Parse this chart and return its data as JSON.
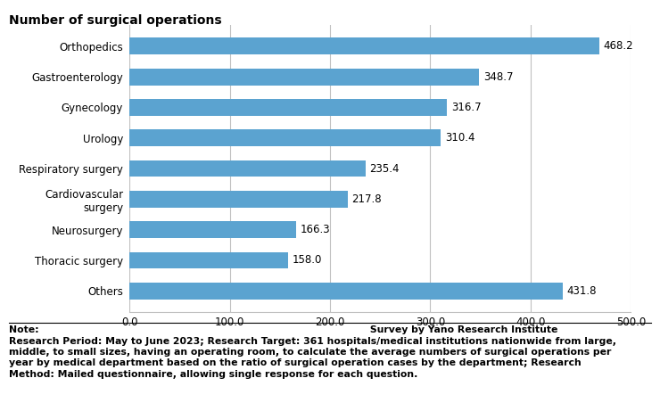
{
  "title": "Number of surgical operations",
  "categories": [
    "Orthopedics",
    "Gastroenterology",
    "Gynecology",
    "Urology",
    "Respiratory surgery",
    "Cardiovascular\nsurgery",
    "Neurosurgery",
    "Thoracic surgery",
    "Others"
  ],
  "values": [
    468.2,
    348.7,
    316.7,
    310.4,
    235.4,
    217.8,
    166.3,
    158.0,
    431.8
  ],
  "bar_color": "#5ba3d0",
  "xlim": [
    0,
    500
  ],
  "xticks": [
    0.0,
    100.0,
    200.0,
    300.0,
    400.0,
    500.0
  ],
  "xtick_labels": [
    "0.0",
    "100.0",
    "200.0",
    "300.0",
    "400.0",
    "500.0"
  ],
  "note_line1": "Note:                                                                                                   Survey by Yano Research Institute",
  "note_line2": "Research Period: May to June 2023; Research Target: 361 hospitals/medical institutions nationwide from large,",
  "note_line3": "middle, to small sizes, having an operating room, to calculate the average numbers of surgical operations per",
  "note_line4": "year by medical department based on the ratio of surgical operation cases by the department; Research",
  "note_line5": "Method: Mailed questionnaire, allowing single response for each question.",
  "title_fontsize": 10,
  "label_fontsize": 8.5,
  "tick_fontsize": 8.5,
  "note_fontsize": 7.8,
  "bar_value_fontsize": 8.5,
  "background_color": "#ffffff",
  "grid_color": "#c0c0c0"
}
